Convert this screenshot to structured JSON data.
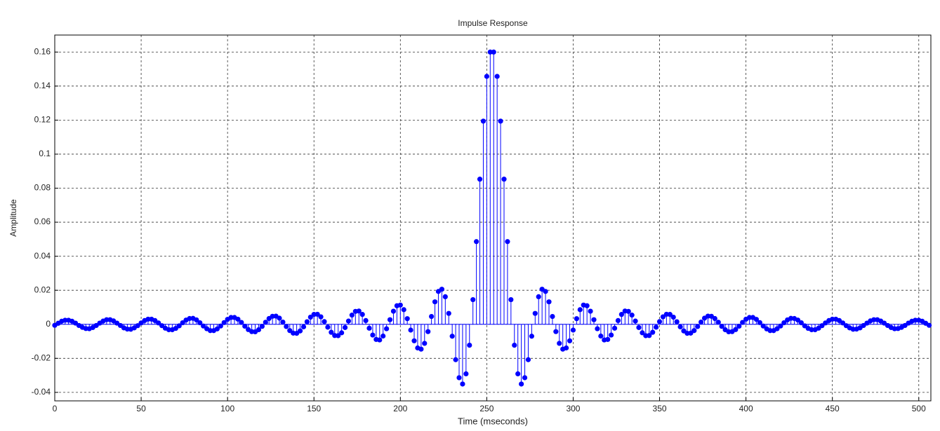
{
  "chart_data": {
    "type": "stem",
    "title": "Impulse Response",
    "x_label": "Time (mseconds)",
    "y_label": "Amplitude",
    "xlim": [
      0,
      507
    ],
    "xticks": [
      0,
      50,
      100,
      150,
      200,
      250,
      300,
      350,
      400,
      450,
      500
    ],
    "ylim": [
      -0.045,
      0.17
    ],
    "yticks": [
      -0.04,
      -0.02,
      0,
      0.02,
      0.04,
      0.06,
      0.08,
      0.1,
      0.12,
      0.14,
      0.16
    ],
    "grid": true,
    "x": [
      0,
      2,
      4,
      6,
      8,
      10,
      12,
      14,
      16,
      18,
      20,
      22,
      24,
      26,
      28,
      30,
      32,
      34,
      36,
      38,
      40,
      42,
      44,
      46,
      48,
      50,
      52,
      54,
      56,
      58,
      60,
      62,
      64,
      66,
      68,
      70,
      72,
      74,
      76,
      78,
      80,
      82,
      84,
      86,
      88,
      90,
      92,
      94,
      96,
      98,
      100,
      102,
      104,
      106,
      108,
      110,
      112,
      114,
      116,
      118,
      120,
      122,
      124,
      126,
      128,
      130,
      132,
      134,
      136,
      138,
      140,
      142,
      144,
      146,
      148,
      150,
      152,
      154,
      156,
      158,
      160,
      162,
      164,
      166,
      168,
      170,
      172,
      174,
      176,
      178,
      180,
      182,
      184,
      186,
      188,
      190,
      192,
      194,
      196,
      198,
      200,
      202,
      204,
      206,
      208,
      210,
      212,
      214,
      216,
      218,
      220,
      222,
      224,
      226,
      228,
      230,
      232,
      234,
      236,
      238,
      240,
      242,
      244,
      246,
      248,
      250,
      252,
      254,
      256,
      258,
      260,
      262,
      264,
      266,
      268,
      270,
      272,
      274,
      276,
      278,
      280,
      282,
      284,
      286,
      288,
      290,
      292,
      294,
      296,
      298,
      300,
      302,
      304,
      306,
      308,
      310,
      312,
      314,
      316,
      318,
      320,
      322,
      324,
      326,
      328,
      330,
      332,
      334,
      336,
      338,
      340,
      342,
      344,
      346,
      348,
      350,
      352,
      354,
      356,
      358,
      360,
      362,
      364,
      366,
      368,
      370,
      372,
      374,
      376,
      378,
      380,
      382,
      384,
      386,
      388,
      390,
      392,
      394,
      396,
      398,
      400,
      402,
      404,
      406,
      408,
      410,
      412,
      414,
      416,
      418,
      420,
      422,
      424,
      426,
      428,
      430,
      432,
      434,
      436,
      438,
      440,
      442,
      444,
      446,
      448,
      450,
      452,
      454,
      456,
      458,
      460,
      462,
      464,
      466,
      468,
      470,
      472,
      474,
      476,
      478,
      480,
      482,
      484,
      486,
      488,
      490,
      492,
      494,
      496,
      498,
      500,
      502,
      504,
      506
    ],
    "series": [
      {
        "color": "#0000ff",
        "values": [
          -0.0006,
          0.0006,
          0.0018,
          0.0024,
          0.0024,
          0.0018,
          0.0007,
          -0.0007,
          -0.0018,
          -0.0025,
          -0.0026,
          -0.0019,
          -0.0007,
          0.0007,
          0.0019,
          0.0027,
          0.0027,
          0.002,
          0.0007,
          -0.0007,
          -0.0021,
          -0.0028,
          -0.0029,
          -0.0021,
          -0.0008,
          0.0008,
          0.0022,
          0.003,
          0.003,
          0.0022,
          0.0008,
          -0.0008,
          -0.0023,
          -0.0032,
          -0.0032,
          -0.0024,
          -0.0009,
          0.0009,
          0.0025,
          0.0034,
          0.0035,
          0.0026,
          0.0009,
          -0.001,
          -0.0026,
          -0.0037,
          -0.0037,
          -0.0027,
          -0.001,
          0.001,
          0.0029,
          0.004,
          0.004,
          0.003,
          0.0011,
          -0.0011,
          -0.0031,
          -0.0043,
          -0.0044,
          -0.0032,
          -0.0012,
          0.0012,
          0.0034,
          0.0047,
          0.0048,
          0.0036,
          0.0013,
          -0.0013,
          -0.0037,
          -0.0052,
          -0.0053,
          -0.0039,
          -0.0015,
          0.0015,
          0.0042,
          0.0058,
          0.0059,
          0.0044,
          0.0016,
          -0.0017,
          -0.0047,
          -0.0066,
          -0.0067,
          -0.005,
          -0.0019,
          0.0019,
          0.0054,
          0.0076,
          0.0078,
          0.0058,
          0.0022,
          -0.0023,
          -0.0063,
          -0.0089,
          -0.0092,
          -0.0069,
          -0.0026,
          0.0027,
          0.0077,
          0.0109,
          0.0113,
          0.0086,
          0.0033,
          -0.0034,
          -0.0097,
          -0.0139,
          -0.0146,
          -0.0112,
          -0.0043,
          0.0046,
          0.0132,
          0.0193,
          0.0206,
          0.0162,
          0.0064,
          -0.007,
          -0.0208,
          -0.0314,
          -0.0351,
          -0.0291,
          -0.0123,
          0.0145,
          0.0486,
          0.0853,
          0.1194,
          0.1457,
          0.16,
          0.16,
          0.1457,
          0.1194,
          0.0853,
          0.0486,
          0.0145,
          -0.0123,
          -0.0291,
          -0.0351,
          -0.0314,
          -0.0208,
          -0.007,
          0.0064,
          0.0162,
          0.0206,
          0.0193,
          0.0132,
          0.0046,
          -0.0043,
          -0.0112,
          -0.0146,
          -0.0139,
          -0.0097,
          -0.0034,
          0.0033,
          0.0086,
          0.0113,
          0.0109,
          0.0077,
          0.0027,
          -0.0026,
          -0.0069,
          -0.0092,
          -0.0089,
          -0.0063,
          -0.0023,
          0.0022,
          0.0058,
          0.0078,
          0.0076,
          0.0054,
          0.0019,
          -0.0019,
          -0.005,
          -0.0067,
          -0.0066,
          -0.0047,
          -0.0017,
          0.0016,
          0.0044,
          0.0059,
          0.0058,
          0.0042,
          0.0015,
          -0.0015,
          -0.0039,
          -0.0053,
          -0.0052,
          -0.0037,
          -0.0013,
          0.0013,
          0.0036,
          0.0048,
          0.0047,
          0.0034,
          0.0012,
          -0.0012,
          -0.0032,
          -0.0044,
          -0.0043,
          -0.0031,
          -0.0011,
          0.0011,
          0.003,
          0.004,
          0.004,
          0.0029,
          0.001,
          -0.001,
          -0.0027,
          -0.0037,
          -0.0037,
          -0.0026,
          -0.001,
          0.0009,
          0.0026,
          0.0035,
          0.0034,
          0.0025,
          0.0009,
          -0.0009,
          -0.0024,
          -0.0032,
          -0.0032,
          -0.0023,
          -0.0008,
          0.0008,
          0.0022,
          0.003,
          0.003,
          0.0022,
          0.0008,
          -0.0008,
          -0.0021,
          -0.0029,
          -0.0028,
          -0.0021,
          -0.0007,
          0.0007,
          0.002,
          0.0027,
          0.0027,
          0.0019,
          0.0007,
          -0.0007,
          -0.0019,
          -0.0026,
          -0.0025,
          -0.0018,
          -0.0007,
          0.0007,
          0.0018,
          0.0024,
          0.0024,
          0.0018,
          0.0006,
          -0.0006
        ]
      }
    ]
  }
}
